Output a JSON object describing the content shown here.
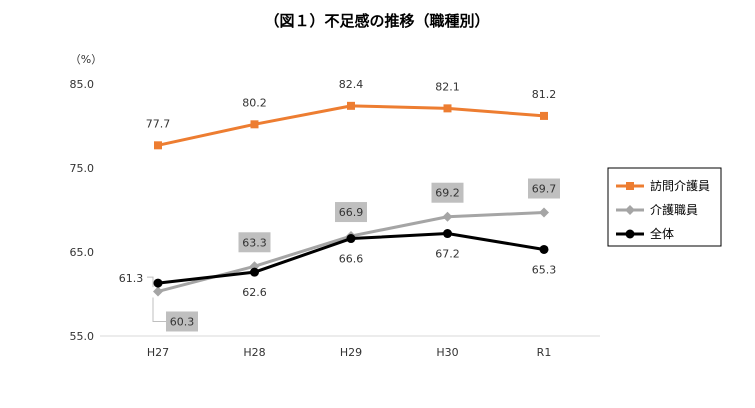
{
  "chart_data": {
    "type": "line",
    "title": "（図１）不足感の推移（職種別）",
    "ylabel": "（%）",
    "xlabel": "",
    "categories": [
      "H27",
      "H28",
      "H29",
      "H30",
      "R1"
    ],
    "ylim": [
      55.0,
      85.0
    ],
    "yticks": [
      "85.0",
      "75.0",
      "65.0",
      "55.0"
    ],
    "ytick_values": [
      85,
      75,
      65,
      55
    ],
    "grid": false,
    "legend_position": "right",
    "series": [
      {
        "name": "訪問介護員",
        "values": [
          77.7,
          80.2,
          82.4,
          82.1,
          81.2
        ],
        "color": "#ED7D31",
        "marker": "square",
        "labels": [
          "77.7",
          "80.2",
          "82.4",
          "82.1",
          "81.2"
        ],
        "label_style": "plain"
      },
      {
        "name": "介護職員",
        "values": [
          60.3,
          63.3,
          66.9,
          69.2,
          69.7
        ],
        "color": "#A5A5A5",
        "marker": "diamond",
        "labels": [
          "60.3",
          "63.3",
          "66.9",
          "69.2",
          "69.7"
        ],
        "label_style": "boxed"
      },
      {
        "name": "全体",
        "values": [
          61.3,
          62.6,
          66.6,
          67.2,
          65.3
        ],
        "color": "#000000",
        "marker": "circle",
        "labels": [
          "61.3",
          "62.6",
          "66.6",
          "67.2",
          "65.3"
        ],
        "label_style": "plain"
      }
    ]
  }
}
